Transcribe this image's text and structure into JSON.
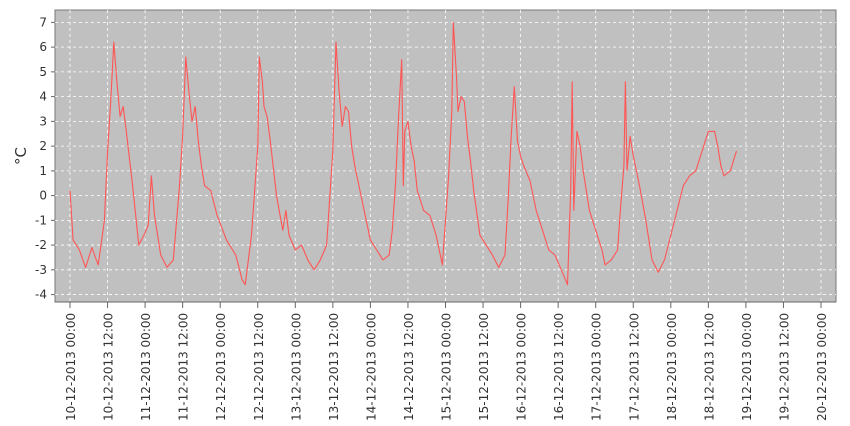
{
  "chart_data": {
    "type": "line",
    "title": "",
    "xlabel": "",
    "ylabel": "°C",
    "ylim": [
      -4.3,
      7.5
    ],
    "xlim": [
      "2013-12-10 00:00",
      "2013-12-20 00:00"
    ],
    "grid": true,
    "plot_background": "#c0c0c0",
    "yticks": [
      7,
      6,
      5,
      4,
      3,
      2,
      1,
      0,
      -1,
      -2,
      -3,
      -4
    ],
    "xticks": [
      "10-12-2013 00:00",
      "10-12-2013 12:00",
      "11-12-2013 00:00",
      "11-12-2013 12:00",
      "12-12-2013 00:00",
      "12-12-2013 12:00",
      "13-12-2013 00:00",
      "13-12-2013 12:00",
      "14-12-2013 00:00",
      "14-12-2013 12:00",
      "15-12-2013 00:00",
      "15-12-2013 12:00",
      "16-12-2013 00:00",
      "16-12-2013 12:00",
      "17-12-2013 00:00",
      "17-12-2013 12:00",
      "18-12-2013 00:00",
      "18-12-2013 12:00",
      "19-12-2013 00:00",
      "19-12-2013 12:00",
      "20-12-2013 00:00"
    ],
    "series": [
      {
        "color": "#ff5555",
        "points": [
          [
            "2013-12-10 00:00",
            0.2
          ],
          [
            "2013-12-10 01:00",
            -1.8
          ],
          [
            "2013-12-10 03:00",
            -2.2
          ],
          [
            "2013-12-10 05:00",
            -2.9
          ],
          [
            "2013-12-10 07:00",
            -2.1
          ],
          [
            "2013-12-10 09:00",
            -2.8
          ],
          [
            "2013-12-10 11:00",
            -1.0
          ],
          [
            "2013-12-10 12:00",
            1.8
          ],
          [
            "2013-12-10 13:00",
            3.8
          ],
          [
            "2013-12-10 14:00",
            6.2
          ],
          [
            "2013-12-10 15:00",
            4.6
          ],
          [
            "2013-12-10 16:00",
            3.2
          ],
          [
            "2013-12-10 17:00",
            3.6
          ],
          [
            "2013-12-10 18:00",
            2.6
          ],
          [
            "2013-12-10 20:00",
            0.4
          ],
          [
            "2013-12-10 22:00",
            -2.0
          ],
          [
            "2013-12-11 00:00",
            -1.5
          ],
          [
            "2013-12-11 01:00",
            -1.2
          ],
          [
            "2013-12-11 02:00",
            0.8
          ],
          [
            "2013-12-11 03:00",
            -0.8
          ],
          [
            "2013-12-11 05:00",
            -2.4
          ],
          [
            "2013-12-11 07:00",
            -2.9
          ],
          [
            "2013-12-11 09:00",
            -2.6
          ],
          [
            "2013-12-11 11:00",
            0.4
          ],
          [
            "2013-12-11 12:00",
            2.4
          ],
          [
            "2013-12-11 13:00",
            5.6
          ],
          [
            "2013-12-11 14:00",
            4.2
          ],
          [
            "2013-12-11 15:00",
            3.0
          ],
          [
            "2013-12-11 16:00",
            3.6
          ],
          [
            "2013-12-11 17:00",
            2.2
          ],
          [
            "2013-12-11 18:00",
            1.2
          ],
          [
            "2013-12-11 19:00",
            0.4
          ],
          [
            "2013-12-11 21:00",
            0.2
          ],
          [
            "2013-12-11 23:00",
            -0.8
          ],
          [
            "2013-12-12 02:00",
            -1.8
          ],
          [
            "2013-12-12 05:00",
            -2.4
          ],
          [
            "2013-12-12 07:00",
            -3.4
          ],
          [
            "2013-12-12 08:00",
            -3.6
          ],
          [
            "2013-12-12 10:00",
            -1.6
          ],
          [
            "2013-12-12 12:00",
            2.0
          ],
          [
            "2013-12-12 12:30",
            5.6
          ],
          [
            "2013-12-12 13:30",
            4.6
          ],
          [
            "2013-12-12 14:00",
            3.6
          ],
          [
            "2013-12-12 15:00",
            3.2
          ],
          [
            "2013-12-12 16:00",
            2.2
          ],
          [
            "2013-12-12 18:00",
            0.0
          ],
          [
            "2013-12-12 20:00",
            -1.4
          ],
          [
            "2013-12-12 21:00",
            -0.6
          ],
          [
            "2013-12-12 22:00",
            -1.6
          ],
          [
            "2013-12-13 00:00",
            -2.2
          ],
          [
            "2013-12-13 02:00",
            -2.0
          ],
          [
            "2013-12-13 04:00",
            -2.6
          ],
          [
            "2013-12-13 06:00",
            -3.0
          ],
          [
            "2013-12-13 08:00",
            -2.6
          ],
          [
            "2013-12-13 10:00",
            -2.0
          ],
          [
            "2013-12-13 12:00",
            1.8
          ],
          [
            "2013-12-13 13:00",
            6.2
          ],
          [
            "2013-12-13 14:00",
            4.2
          ],
          [
            "2013-12-13 15:00",
            2.8
          ],
          [
            "2013-12-13 16:00",
            3.6
          ],
          [
            "2013-12-13 17:00",
            3.4
          ],
          [
            "2013-12-13 18:00",
            2.0
          ],
          [
            "2013-12-13 19:00",
            1.2
          ],
          [
            "2013-12-13 20:00",
            0.6
          ],
          [
            "2013-12-13 22:00",
            -0.6
          ],
          [
            "2013-12-14 00:00",
            -1.8
          ],
          [
            "2013-12-14 02:00",
            -2.2
          ],
          [
            "2013-12-14 04:00",
            -2.6
          ],
          [
            "2013-12-14 06:00",
            -2.4
          ],
          [
            "2013-12-14 07:00",
            -1.4
          ],
          [
            "2013-12-14 08:00",
            0.4
          ],
          [
            "2013-12-14 09:00",
            3.2
          ],
          [
            "2013-12-14 10:00",
            5.5
          ],
          [
            "2013-12-14 10:30",
            0.4
          ],
          [
            "2013-12-14 11:00",
            2.6
          ],
          [
            "2013-12-14 12:00",
            3.0
          ],
          [
            "2013-12-14 13:00",
            2.0
          ],
          [
            "2013-12-14 14:00",
            1.4
          ],
          [
            "2013-12-14 15:00",
            0.2
          ],
          [
            "2013-12-14 17:00",
            -0.6
          ],
          [
            "2013-12-14 19:00",
            -0.8
          ],
          [
            "2013-12-14 21:00",
            -1.6
          ],
          [
            "2013-12-14 23:00",
            -2.8
          ],
          [
            "2013-12-15 00:00",
            -1.0
          ],
          [
            "2013-12-15 01:00",
            0.8
          ],
          [
            "2013-12-15 02:00",
            3.4
          ],
          [
            "2013-12-15 02:30",
            7.0
          ],
          [
            "2013-12-15 03:30",
            4.8
          ],
          [
            "2013-12-15 04:00",
            3.4
          ],
          [
            "2013-12-15 05:00",
            4.0
          ],
          [
            "2013-12-15 06:00",
            3.8
          ],
          [
            "2013-12-15 07:00",
            2.4
          ],
          [
            "2013-12-15 08:00",
            1.4
          ],
          [
            "2013-12-15 09:00",
            0.2
          ],
          [
            "2013-12-15 11:00",
            -1.6
          ],
          [
            "2013-12-15 13:00",
            -2.0
          ],
          [
            "2013-12-15 15:00",
            -2.4
          ],
          [
            "2013-12-15 17:00",
            -2.9
          ],
          [
            "2013-12-15 19:00",
            -2.4
          ],
          [
            "2013-12-15 20:00",
            -0.2
          ],
          [
            "2013-12-15 21:00",
            2.4
          ],
          [
            "2013-12-15 22:00",
            4.4
          ],
          [
            "2013-12-15 23:00",
            2.2
          ],
          [
            "2013-12-16 00:00",
            1.6
          ],
          [
            "2013-12-16 01:00",
            1.2
          ],
          [
            "2013-12-16 03:00",
            0.6
          ],
          [
            "2013-12-16 05:00",
            -0.6
          ],
          [
            "2013-12-16 07:00",
            -1.4
          ],
          [
            "2013-12-16 09:00",
            -2.2
          ],
          [
            "2013-12-16 11:00",
            -2.4
          ],
          [
            "2013-12-16 13:00",
            -3.0
          ],
          [
            "2013-12-16 15:00",
            -3.6
          ],
          [
            "2013-12-16 16:00",
            0.2
          ],
          [
            "2013-12-16 16:30",
            4.6
          ],
          [
            "2013-12-16 17:00",
            -0.6
          ],
          [
            "2013-12-16 18:00",
            2.6
          ],
          [
            "2013-12-16 19:00",
            2.0
          ],
          [
            "2013-12-16 20:00",
            1.0
          ],
          [
            "2013-12-16 22:00",
            -0.6
          ],
          [
            "2013-12-17 00:00",
            -1.4
          ],
          [
            "2013-12-17 02:00",
            -2.2
          ],
          [
            "2013-12-17 03:00",
            -2.8
          ],
          [
            "2013-12-17 05:00",
            -2.6
          ],
          [
            "2013-12-17 07:00",
            -2.2
          ],
          [
            "2013-12-17 08:00",
            -0.4
          ],
          [
            "2013-12-17 09:00",
            1.2
          ],
          [
            "2013-12-17 09:30",
            4.6
          ],
          [
            "2013-12-17 10:00",
            1.0
          ],
          [
            "2013-12-17 11:00",
            2.4
          ],
          [
            "2013-12-17 12:00",
            1.6
          ],
          [
            "2013-12-17 14:00",
            0.4
          ],
          [
            "2013-12-17 16:00",
            -1.0
          ],
          [
            "2013-12-17 18:00",
            -2.6
          ],
          [
            "2013-12-17 20:00",
            -3.1
          ],
          [
            "2013-12-17 22:00",
            -2.6
          ],
          [
            "2013-12-18 00:00",
            -1.6
          ],
          [
            "2013-12-18 02:00",
            -0.6
          ],
          [
            "2013-12-18 04:00",
            0.4
          ],
          [
            "2013-12-18 06:00",
            0.8
          ],
          [
            "2013-12-18 08:00",
            1.0
          ],
          [
            "2013-12-18 10:00",
            1.8
          ],
          [
            "2013-12-18 12:00",
            2.6
          ],
          [
            "2013-12-18 14:00",
            2.6
          ],
          [
            "2013-12-18 15:00",
            2.0
          ],
          [
            "2013-12-18 16:00",
            1.2
          ],
          [
            "2013-12-18 17:00",
            0.8
          ],
          [
            "2013-12-18 19:00",
            1.0
          ],
          [
            "2013-12-18 20:00",
            1.4
          ],
          [
            "2013-12-18 21:00",
            1.8
          ]
        ]
      }
    ]
  }
}
